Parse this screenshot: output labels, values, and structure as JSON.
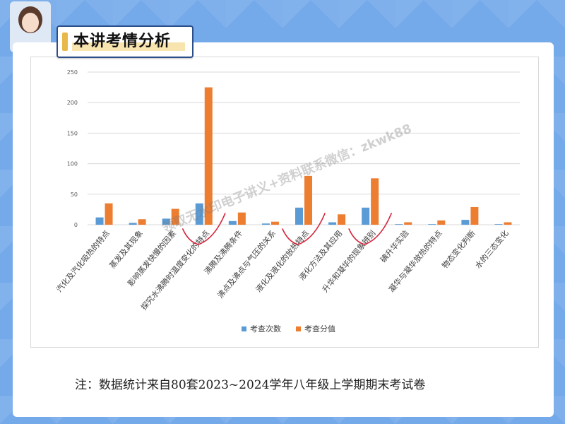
{
  "header": {
    "title": "本讲考情分析"
  },
  "watermark": "领取无水印电子讲义+资料联系微信：zkwk88",
  "note": "注：数据统计来自80套2023~2024学年八年级上学期期末考试卷",
  "colors": {
    "series1": "#5b9bd5",
    "series2": "#ed7d31",
    "annotation": "#d6243a"
  },
  "chart_data": {
    "type": "bar",
    "categories": [
      "汽化及汽化吸热的特点",
      "蒸发及其现象",
      "影响蒸发快慢的因素",
      "探究水沸腾时温度变化的特点",
      "沸腾及沸腾条件",
      "沸点及沸点与气压的关系",
      "液化及液化的放热特点",
      "液化方法及其应用",
      "升华和凝华的现象辨别",
      "碘升华实验",
      "凝华与凝华放热的特点",
      "物态变化判断",
      "水的三态变化"
    ],
    "series": [
      {
        "name": "考查次数",
        "values": [
          12,
          3,
          10,
          35,
          6,
          2,
          28,
          4,
          28,
          1,
          1,
          8,
          1
        ]
      },
      {
        "name": "考查分值",
        "values": [
          35,
          9,
          26,
          225,
          20,
          5,
          80,
          17,
          76,
          4,
          7,
          29,
          4
        ]
      }
    ],
    "ylim": [
      0,
      250
    ],
    "yticks": [
      0,
      50,
      100,
      150,
      200,
      250
    ],
    "grid": true,
    "legend_position": "bottom"
  }
}
